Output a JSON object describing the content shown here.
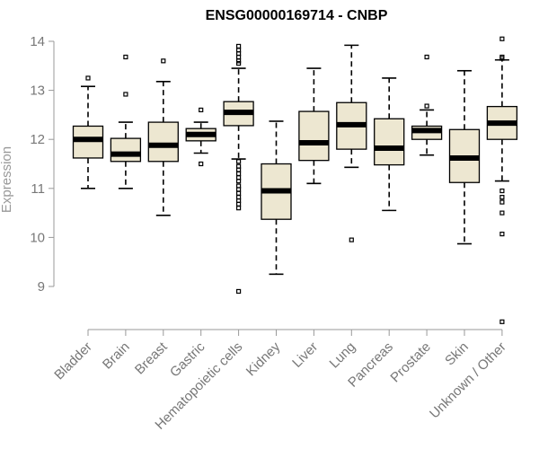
{
  "chart_data": {
    "type": "boxplot",
    "title": "ENSG00000169714 - CNBP",
    "xlabel": "",
    "ylabel": "Expression",
    "ylim": [
      8.2,
      14.2
    ],
    "yticks": [
      9,
      10,
      11,
      12,
      13,
      14
    ],
    "grid": false,
    "box_color": "#ede7d1",
    "categories": [
      "Bladder",
      "Brain",
      "Breast",
      "Gastric",
      "Hematopoietic cells",
      "Kidney",
      "Liver",
      "Lung",
      "Pancreas",
      "Prostate",
      "Skin",
      "Unknown / Other"
    ],
    "boxes": [
      {
        "q1": 11.62,
        "median": 12.0,
        "q3": 12.27,
        "whisker_low": 11.0,
        "whisker_high": 13.08,
        "outliers": [
          13.25
        ]
      },
      {
        "q1": 11.55,
        "median": 11.7,
        "q3": 12.02,
        "whisker_low": 11.0,
        "whisker_high": 12.35,
        "outliers": [
          12.92,
          13.68
        ]
      },
      {
        "q1": 11.55,
        "median": 11.88,
        "q3": 12.35,
        "whisker_low": 10.45,
        "whisker_high": 13.18,
        "outliers": [
          13.6
        ]
      },
      {
        "q1": 11.97,
        "median": 12.1,
        "q3": 12.22,
        "whisker_low": 11.72,
        "whisker_high": 12.35,
        "outliers": [
          12.6,
          11.5
        ]
      },
      {
        "q1": 12.28,
        "median": 12.55,
        "q3": 12.77,
        "whisker_low": 11.6,
        "whisker_high": 13.45,
        "outliers": [
          13.55,
          13.6,
          13.68,
          13.75,
          13.82,
          13.9,
          11.55,
          11.45,
          11.38,
          11.3,
          11.22,
          11.15,
          11.05,
          10.98,
          10.9,
          10.82,
          10.75,
          10.68,
          10.6,
          8.9
        ]
      },
      {
        "q1": 10.37,
        "median": 10.95,
        "q3": 11.5,
        "whisker_low": 9.25,
        "whisker_high": 12.37,
        "outliers": []
      },
      {
        "q1": 11.57,
        "median": 11.93,
        "q3": 12.57,
        "whisker_low": 11.1,
        "whisker_high": 13.45,
        "outliers": []
      },
      {
        "q1": 11.8,
        "median": 12.3,
        "q3": 12.75,
        "whisker_low": 11.43,
        "whisker_high": 13.92,
        "outliers": [
          9.95
        ]
      },
      {
        "q1": 11.48,
        "median": 11.82,
        "q3": 12.42,
        "whisker_low": 10.55,
        "whisker_high": 13.25,
        "outliers": []
      },
      {
        "q1": 12.0,
        "median": 12.18,
        "q3": 12.27,
        "whisker_low": 11.68,
        "whisker_high": 12.6,
        "outliers": [
          13.68,
          12.68
        ]
      },
      {
        "q1": 11.12,
        "median": 11.62,
        "q3": 12.2,
        "whisker_low": 9.87,
        "whisker_high": 13.4,
        "outliers": []
      },
      {
        "q1": 12.0,
        "median": 12.33,
        "q3": 12.67,
        "whisker_low": 11.15,
        "whisker_high": 13.62,
        "outliers": [
          14.05,
          13.68,
          13.65,
          10.95,
          10.82,
          10.72,
          10.5,
          10.07,
          8.28
        ]
      }
    ]
  }
}
